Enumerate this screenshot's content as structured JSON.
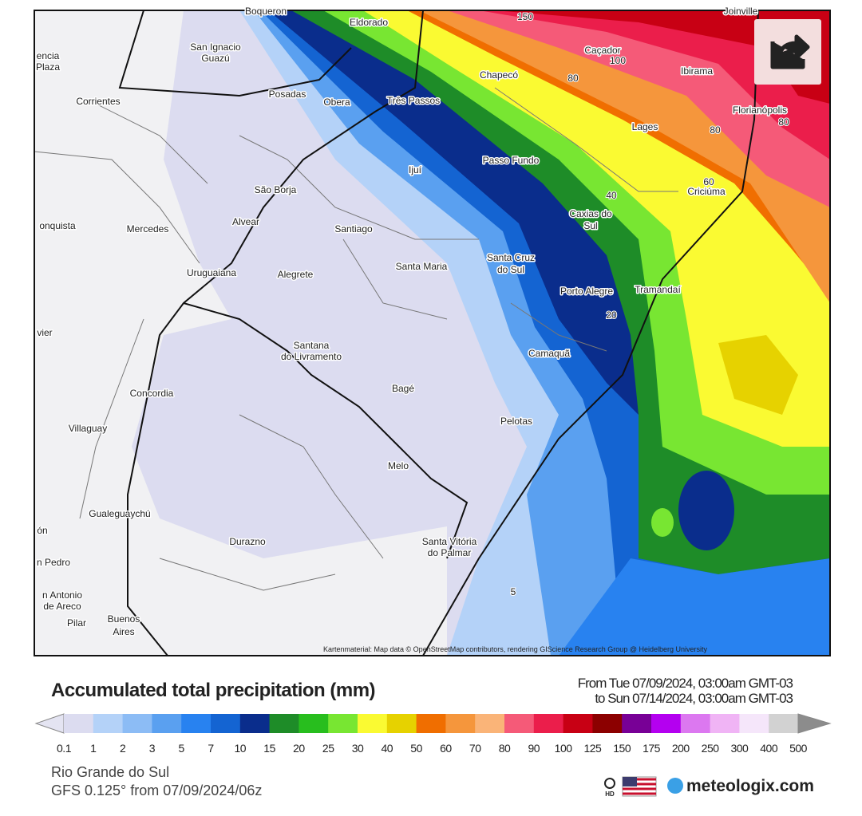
{
  "map": {
    "place_labels": [
      "Boqueron",
      "Eldorado",
      "Joinville",
      "Caçador",
      "Chapecó",
      "Ibirama",
      "encia",
      "Plaza",
      "San Ignacio",
      "Guazú",
      "Posadas",
      "Obera",
      "Três Passos",
      "Corrientes",
      "Florianópolis",
      "Lages",
      "Passo Fundo",
      "Ijuí",
      "Criciúma",
      "São Borja",
      "Caxias do",
      "Sul",
      "Alvear",
      "Mercedes",
      "onquista",
      "Santiago",
      "Santa Cruz",
      "do Sul",
      "Santa Maria",
      "Uruguaiana",
      "Alegrete",
      "Porto Alegre",
      "Tramandaí",
      "vier",
      "Santana",
      "do Livramento",
      "Camaquã",
      "Bagé",
      "Concordia",
      "Pelotas",
      "Villaguay",
      "Melo",
      "Gualeguaychú",
      "ón",
      "Durazno",
      "Santa Vitória",
      "do Palmar",
      "n Pedro",
      "n Antonio",
      "de Areco",
      "Pilar",
      "Buenos",
      "Aires"
    ],
    "contour_labels": [
      "150",
      "100",
      "80",
      "80",
      "80",
      "60",
      "40",
      "20",
      "5"
    ],
    "attribution": "Kartenmaterial: Map data © OpenStreetMap contributors, rendering GIScience Research Group @ Heidelberg University"
  },
  "title": "Accumulated total precipitation (mm)",
  "period": {
    "from": "From Tue 07/09/2024, 03:00am GMT-03",
    "to": "to Sun 07/14/2024, 03:00am GMT-03"
  },
  "legend": {
    "labels": [
      "0.1",
      "1",
      "2",
      "3",
      "5",
      "7",
      "10",
      "15",
      "20",
      "25",
      "30",
      "40",
      "50",
      "60",
      "70",
      "80",
      "90",
      "100",
      "125",
      "150",
      "175",
      "200",
      "250",
      "300",
      "400",
      "500"
    ],
    "colors": [
      "#e4e4f2",
      "#dcdcf0",
      "#b4d2f8",
      "#8cbcf5",
      "#5aa0f0",
      "#2882f0",
      "#1464d2",
      "#0a2d8c",
      "#1e8c28",
      "#28be1e",
      "#78e632",
      "#fafa32",
      "#e6d200",
      "#f06e00",
      "#f5963c",
      "#fab478",
      "#f55a78",
      "#eb1e4b",
      "#c80014",
      "#8c0000",
      "#780096",
      "#b400f0",
      "#dc78f0",
      "#f0b4f5",
      "#f5e6fa",
      "#d2d2d2",
      "#8c8c8c"
    ]
  },
  "footer": {
    "region": "Rio Grande do Sul",
    "model": "GFS 0.125° from 07/09/2024/06z"
  },
  "brand": {
    "hd": "HD",
    "site": "meteologix.com"
  }
}
